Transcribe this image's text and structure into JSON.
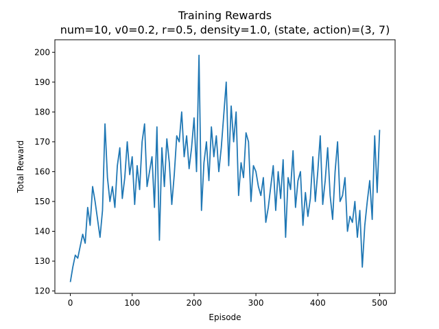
{
  "chart_data": {
    "type": "line",
    "title": "Training Rewards",
    "subtitle": "num=10, v0=0.2, r=0.5, density=1.0, (state, action)=(3, 7)",
    "xlabel": "Episode",
    "ylabel": "Total Reward",
    "xlim": [
      -25,
      525
    ],
    "ylim": [
      119.2,
      204.2
    ],
    "xticks": [
      0,
      100,
      200,
      300,
      400,
      500
    ],
    "yticks": [
      120,
      130,
      140,
      150,
      160,
      170,
      180,
      190,
      200
    ],
    "grid": false,
    "legend": "none",
    "series": [
      {
        "color": "#1f77b4",
        "x": [
          0,
          4,
          8,
          12,
          16,
          20,
          24,
          28,
          32,
          36,
          40,
          44,
          48,
          52,
          56,
          60,
          64,
          68,
          72,
          76,
          80,
          84,
          88,
          92,
          96,
          100,
          104,
          108,
          112,
          116,
          120,
          124,
          128,
          132,
          136,
          140,
          144,
          148,
          152,
          156,
          160,
          164,
          168,
          172,
          176,
          180,
          184,
          188,
          192,
          196,
          200,
          204,
          208,
          212,
          216,
          220,
          224,
          228,
          232,
          236,
          240,
          244,
          248,
          252,
          256,
          260,
          264,
          268,
          272,
          276,
          280,
          284,
          288,
          292,
          296,
          300,
          304,
          308,
          312,
          316,
          320,
          324,
          328,
          332,
          336,
          340,
          344,
          348,
          352,
          356,
          360,
          364,
          368,
          372,
          376,
          380,
          384,
          388,
          392,
          396,
          400,
          404,
          408,
          412,
          416,
          420,
          424,
          428,
          432,
          436,
          440,
          444,
          448,
          452,
          456,
          460,
          464,
          468,
          472,
          476,
          480,
          484,
          488,
          492,
          496,
          500
        ],
        "y": [
          123,
          128,
          132,
          131,
          135,
          139,
          136,
          148,
          142,
          155,
          150,
          144,
          138,
          147,
          176,
          158,
          150,
          155,
          148,
          162,
          168,
          151,
          158,
          170,
          159,
          165,
          149,
          162,
          154,
          170,
          176,
          155,
          160,
          165,
          148,
          175,
          137,
          168,
          155,
          171,
          163,
          149,
          159,
          172,
          170,
          180,
          165,
          172,
          161,
          168,
          178,
          160,
          199,
          147,
          163,
          170,
          157,
          175,
          165,
          172,
          160,
          168,
          179,
          190,
          162,
          182,
          170,
          180,
          152,
          163,
          158,
          173,
          170,
          150,
          162,
          160,
          155,
          152,
          158,
          143,
          148,
          155,
          162,
          147,
          160,
          151,
          164,
          138,
          158,
          154,
          167,
          148,
          157,
          160,
          142,
          153,
          145,
          151,
          165,
          150,
          160,
          172,
          149,
          157,
          168,
          152,
          144,
          160,
          170,
          150,
          152,
          158,
          140,
          145,
          143,
          150,
          138,
          147,
          128,
          142,
          150,
          157,
          144,
          172,
          153,
          174
        ]
      }
    ]
  }
}
